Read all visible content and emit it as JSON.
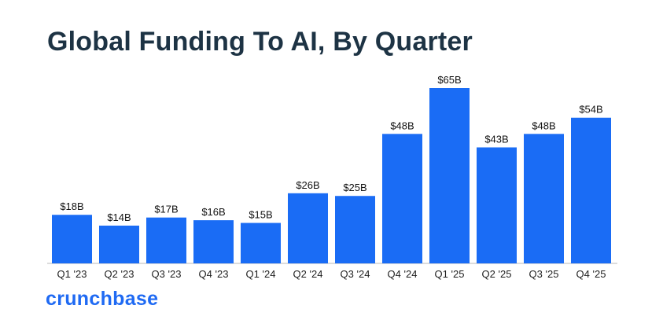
{
  "title": "Global Funding To AI, By Quarter",
  "logo": "crunchbase",
  "colors": {
    "bar": "#1a6cf5",
    "title": "#1d3344",
    "logo": "#1f6af3"
  },
  "chart_data": {
    "type": "bar",
    "title": "Global Funding To AI, By Quarter",
    "categories": [
      "Q1 '23",
      "Q2 '23",
      "Q3 '23",
      "Q4 '23",
      "Q1 '24",
      "Q2 '24",
      "Q3 '24",
      "Q4 '24",
      "Q1 '25",
      "Q2 '25",
      "Q3 '25",
      "Q4 '25"
    ],
    "values": [
      18,
      14,
      17,
      16,
      15,
      26,
      25,
      48,
      65,
      43,
      48,
      54
    ],
    "value_labels": [
      "$18B",
      "$14B",
      "$17B",
      "$16B",
      "$15B",
      "$26B",
      "$25B",
      "$48B",
      "$65B",
      "$43B",
      "$48B",
      "$54B"
    ],
    "xlabel": "",
    "ylabel": "",
    "ylim": [
      0,
      65
    ],
    "grid": false,
    "legend": "none"
  }
}
